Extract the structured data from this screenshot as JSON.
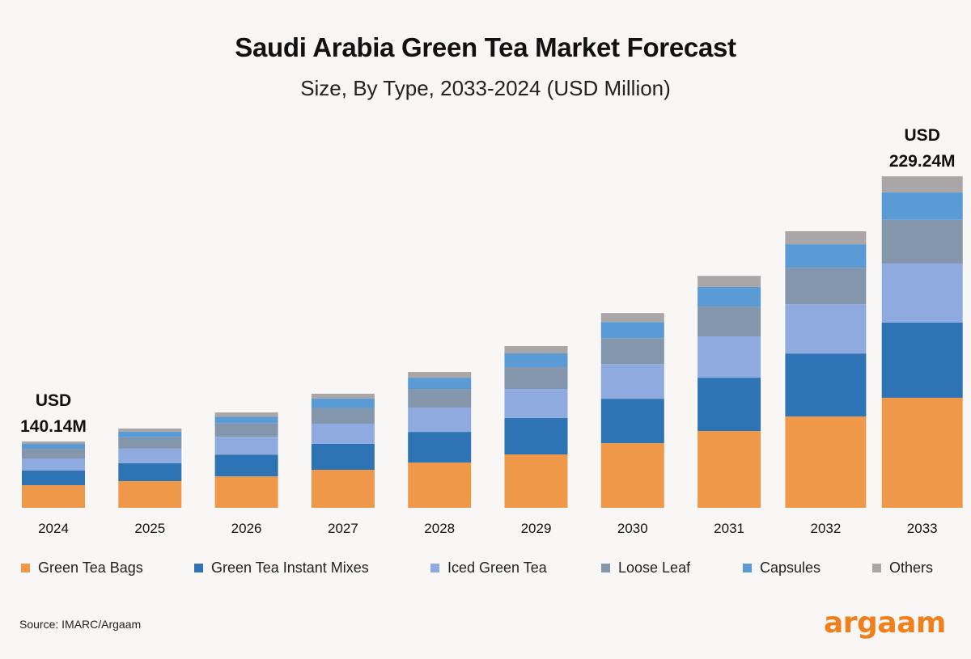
{
  "header": {
    "title": "Saudi Arabia Green Tea Market Forecast",
    "subtitle": "Size, By Type, 2033-2024 (USD Million)"
  },
  "footer": {
    "source": "Source: IMARC/Argaam",
    "logo": "argaam"
  },
  "chart_data": {
    "type": "bar",
    "stacked": true,
    "title": "Saudi Arabia Green Tea Market Forecast",
    "subtitle": "Size, By Type, 2033-2024 (USD Million)",
    "xlabel": "",
    "ylabel": "USD Million",
    "y_axis_visible": false,
    "grid": false,
    "legend_position": "bottom",
    "visual_baseline": 117.86,
    "categories": [
      "2024",
      "2025",
      "2026",
      "2027",
      "2028",
      "2029",
      "2030",
      "2031",
      "2032",
      "2033"
    ],
    "totals": [
      140.14,
      144.5,
      149.9,
      156.2,
      163.5,
      172.2,
      183.3,
      195.8,
      210.8,
      229.24
    ],
    "annotations": [
      {
        "category": "2024",
        "line1": "USD",
        "line2": "140.14M"
      },
      {
        "category": "2033",
        "line1": "USD",
        "line2": "229.24M"
      }
    ],
    "series": [
      {
        "name": "Green Tea Bags",
        "color": "#f0984a",
        "shares": [
          0.341,
          0.337,
          0.329,
          0.333,
          0.333,
          0.33,
          0.332,
          0.331,
          0.33,
          0.332
        ]
      },
      {
        "name": "Green Tea Instant Mixes",
        "color": "#2e74b5",
        "shares": [
          0.22,
          0.225,
          0.229,
          0.227,
          0.226,
          0.225,
          0.228,
          0.23,
          0.228,
          0.227
        ]
      },
      {
        "name": "Iced Green Tea",
        "color": "#8eaadf",
        "shares": [
          0.183,
          0.184,
          0.186,
          0.177,
          0.179,
          0.18,
          0.178,
          0.178,
          0.178,
          0.178
        ]
      },
      {
        "name": "Loose Leaf",
        "color": "#8496ab",
        "shares": [
          0.146,
          0.143,
          0.144,
          0.135,
          0.137,
          0.135,
          0.133,
          0.129,
          0.132,
          0.132
        ]
      },
      {
        "name": "Capsules",
        "color": "#5b9bd5",
        "shares": [
          0.073,
          0.072,
          0.068,
          0.085,
          0.083,
          0.085,
          0.083,
          0.084,
          0.085,
          0.083
        ]
      },
      {
        "name": "Others",
        "color": "#aaa5a7",
        "shares": [
          0.037,
          0.039,
          0.044,
          0.043,
          0.042,
          0.045,
          0.046,
          0.048,
          0.047,
          0.048
        ]
      }
    ]
  }
}
